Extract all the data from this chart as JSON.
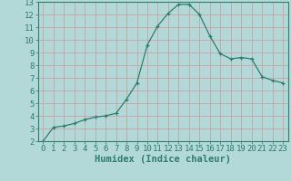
{
  "x": [
    0,
    1,
    2,
    3,
    4,
    5,
    6,
    7,
    8,
    9,
    10,
    11,
    12,
    13,
    14,
    15,
    16,
    17,
    18,
    19,
    20,
    21,
    22,
    23
  ],
  "y": [
    2.0,
    3.1,
    3.2,
    3.4,
    3.7,
    3.9,
    4.0,
    4.2,
    5.3,
    6.6,
    9.6,
    11.1,
    12.1,
    12.8,
    12.8,
    12.0,
    10.3,
    8.9,
    8.5,
    8.6,
    8.5,
    7.1,
    6.8,
    6.6
  ],
  "xlabel": "Humidex (Indice chaleur)",
  "xlim": [
    -0.5,
    23.5
  ],
  "ylim": [
    2,
    13
  ],
  "yticks": [
    2,
    3,
    4,
    5,
    6,
    7,
    8,
    9,
    10,
    11,
    12,
    13
  ],
  "xticks": [
    0,
    1,
    2,
    3,
    4,
    5,
    6,
    7,
    8,
    9,
    10,
    11,
    12,
    13,
    14,
    15,
    16,
    17,
    18,
    19,
    20,
    21,
    22,
    23
  ],
  "line_color": "#2e7d6e",
  "marker": "+",
  "bg_color": "#b2d8d8",
  "grid_color": "#cc9999",
  "font_color": "#2e7d6e",
  "tick_font_size": 6.5,
  "xlabel_fontsize": 7.5
}
